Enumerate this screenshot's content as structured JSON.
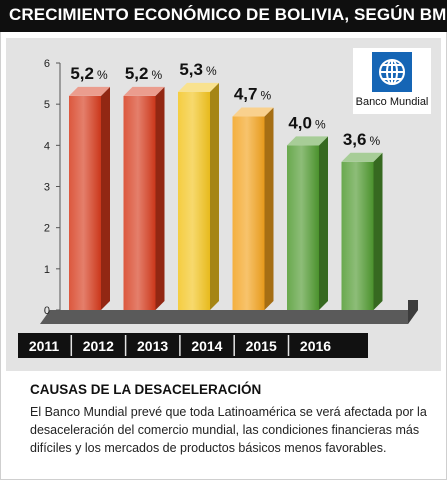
{
  "header": {
    "title": "CRECIMIENTO ECONÓMICO DE BOLIVIA, SEGÚN BM"
  },
  "logo": {
    "label": "Banco Mundial",
    "icon": "world-bank-globe-icon",
    "color": "#1565b5"
  },
  "chart_data": {
    "type": "bar",
    "categories": [
      "2011",
      "2012",
      "2013",
      "2014",
      "2015",
      "2016"
    ],
    "values": [
      5.2,
      5.2,
      5.3,
      4.7,
      4.0,
      3.6
    ],
    "value_labels": [
      "5,2",
      "5,2",
      "5,3",
      "4,7",
      "4,0",
      "3,6"
    ],
    "unit": "%",
    "yticks": [
      "0",
      "1",
      "2",
      "3",
      "4",
      "5",
      "6"
    ],
    "ylim": [
      0,
      6
    ],
    "grid": false,
    "bar_colors": [
      "#d63a1c",
      "#d63a1c",
      "#f3c41f",
      "#f2a21d",
      "#4f9a2f",
      "#4f9a2f"
    ]
  },
  "section": {
    "title": "CAUSAS DE LA DESACELERACIÓN",
    "body": "El Banco Mundial prevé que toda Latinoamérica se verá afectada por la desaceleración del comercio mundial, las condiciones financieras más difíciles y los mercados de productos básicos menos favorables."
  }
}
